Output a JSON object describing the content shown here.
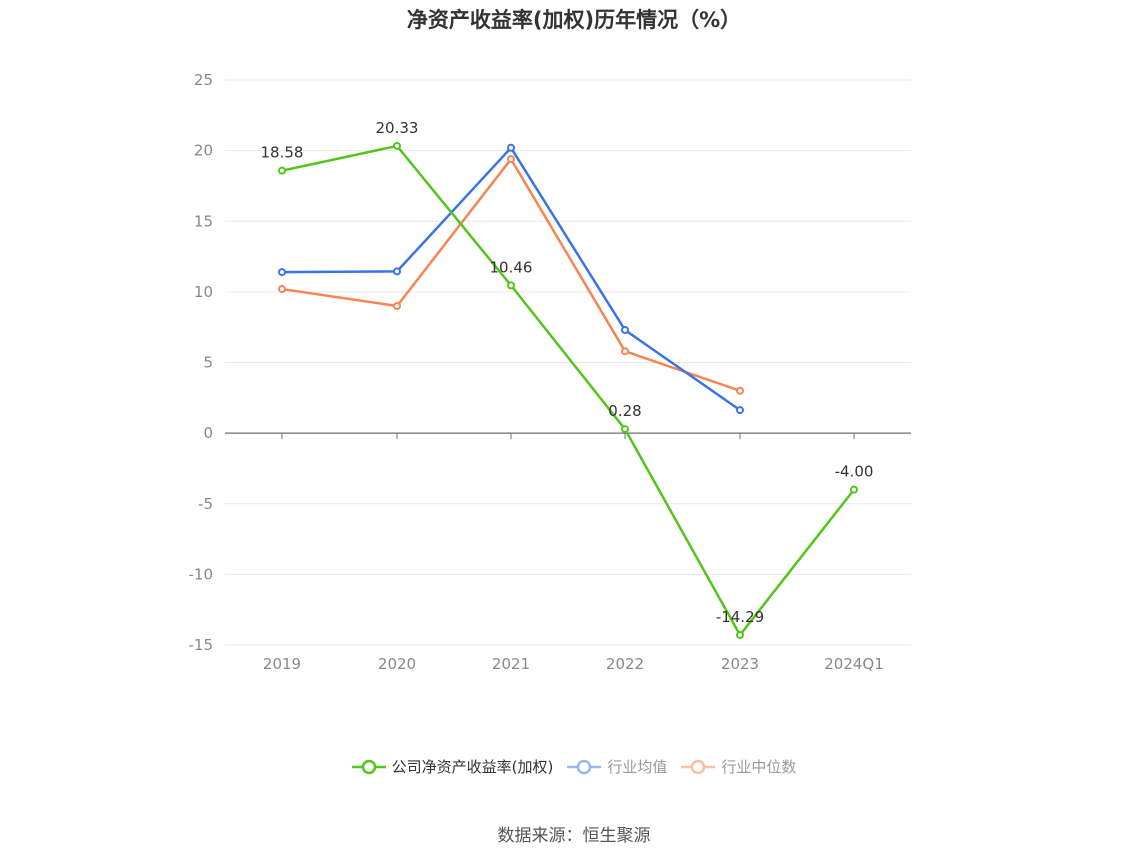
{
  "title": "净资产收益率(加权)历年情况（%）",
  "source": "数据来源：恒生聚源",
  "chart_data": {
    "type": "line",
    "title": "净资产收益率(加权)历年情况（%）",
    "categories": [
      "2019",
      "2020",
      "2021",
      "2022",
      "2023",
      "2024Q1"
    ],
    "ylim": [
      -15,
      25
    ],
    "yticks": [
      25,
      20,
      15,
      10,
      5,
      0,
      -5,
      -10,
      -15
    ],
    "grid": true,
    "legend_position": "bottom",
    "series": [
      {
        "name": "公司净资产收益率(加权)",
        "color": "#52c41a",
        "legend_color": "#52c41a",
        "text_color": "#333333",
        "values": [
          18.58,
          20.33,
          10.46,
          0.28,
          -14.29,
          -4.0
        ],
        "labels": [
          "18.58",
          "20.33",
          "10.46",
          "0.28",
          "-14.29",
          "-4.00"
        ]
      },
      {
        "name": "行业均值",
        "color": "#3a72e8",
        "legend_color": "#9ab8f2",
        "text_color": "#999999",
        "values": [
          11.4,
          11.45,
          20.2,
          7.3,
          1.63,
          null
        ]
      },
      {
        "name": "行业中位数",
        "color": "#f78552",
        "legend_color": "#f9bfa3",
        "text_color": "#999999",
        "values": [
          10.2,
          9.0,
          19.4,
          5.8,
          3.0,
          null
        ]
      }
    ]
  }
}
